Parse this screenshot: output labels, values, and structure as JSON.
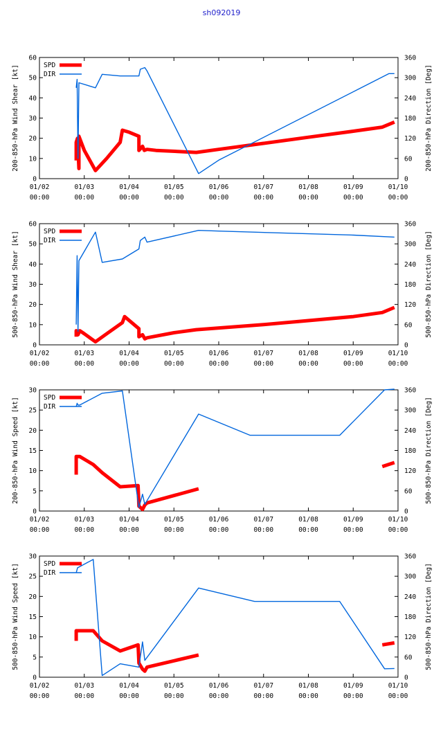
{
  "figure_title": "sh092019",
  "chart_data": [
    {
      "type": "line",
      "ylabel_left": "200-850-hPa Wind Shear [kt]",
      "ylabel_right": "200-850-hPa Direction [Deg]",
      "ylim_left": [
        0,
        60
      ],
      "yticks_left": [
        "0",
        "10",
        "20",
        "30",
        "40",
        "50",
        "60"
      ],
      "ylim_right": [
        0,
        360
      ],
      "yticks_right": [
        "0",
        "60",
        "120",
        "180",
        "240",
        "300",
        "360"
      ],
      "xlim": [
        0,
        8
      ],
      "xticks": [
        {
          "date": "01/02",
          "time": "00:00"
        },
        {
          "date": "01/03",
          "time": "00:00"
        },
        {
          "date": "01/04",
          "time": "00:00"
        },
        {
          "date": "01/05",
          "time": "00:00"
        },
        {
          "date": "01/06",
          "time": "00:00"
        },
        {
          "date": "01/07",
          "time": "00:00"
        },
        {
          "date": "01/08",
          "time": "00:00"
        },
        {
          "date": "01/09",
          "time": "00:00"
        },
        {
          "date": "01/10",
          "time": "00:00"
        }
      ],
      "legend": [
        "SPD",
        "DIR"
      ],
      "series": [
        {
          "name": "SPD",
          "axis": "left",
          "color": "#ff0000",
          "points": [
            [
              0.82,
              9
            ],
            [
              0.82,
              18
            ],
            [
              0.85,
              20
            ],
            [
              0.88,
              5
            ],
            [
              0.88,
              21
            ],
            [
              1.0,
              14
            ],
            [
              1.25,
              4
            ],
            [
              1.5,
              10
            ],
            [
              1.8,
              18
            ],
            [
              1.85,
              24
            ],
            [
              2.0,
              23
            ],
            [
              2.22,
              21
            ],
            [
              2.22,
              14
            ],
            [
              2.3,
              16
            ],
            [
              2.34,
              14
            ],
            [
              2.4,
              14.5
            ],
            [
              2.6,
              14
            ],
            [
              3.5,
              13
            ],
            [
              4.0,
              14.5
            ],
            [
              5.0,
              17.5
            ],
            [
              6.0,
              20.5
            ],
            [
              7.0,
              23.5
            ],
            [
              7.65,
              25.5
            ],
            [
              7.92,
              28
            ]
          ]
        },
        {
          "name": "DIR",
          "axis": "right",
          "color": "#0066dd",
          "points": [
            [
              0.82,
              270
            ],
            [
              0.84,
              295
            ],
            [
              0.86,
              60
            ],
            [
              0.88,
              285
            ],
            [
              1.25,
              270
            ],
            [
              1.4,
              310
            ],
            [
              1.8,
              305
            ],
            [
              2.22,
              305
            ],
            [
              2.25,
              325
            ],
            [
              2.35,
              330
            ],
            [
              2.4,
              320
            ],
            [
              3.55,
              15
            ],
            [
              4.0,
              55
            ],
            [
              7.8,
              312
            ],
            [
              7.92,
              312
            ]
          ]
        }
      ]
    },
    {
      "type": "line",
      "ylabel_left": "500-850-hPa Wind Shear [kt]",
      "ylabel_right": "500-850-hPa Direction [Deg]",
      "ylim_left": [
        0,
        60
      ],
      "yticks_left": [
        "0",
        "10",
        "20",
        "30",
        "40",
        "50",
        "60"
      ],
      "ylim_right": [
        0,
        360
      ],
      "yticks_right": [
        "0",
        "60",
        "120",
        "180",
        "240",
        "300",
        "360"
      ],
      "xlim": [
        0,
        8
      ],
      "xticks": [
        {
          "date": "01/02",
          "time": "00:00"
        },
        {
          "date": "01/03",
          "time": "00:00"
        },
        {
          "date": "01/04",
          "time": "00:00"
        },
        {
          "date": "01/05",
          "time": "00:00"
        },
        {
          "date": "01/06",
          "time": "00:00"
        },
        {
          "date": "01/07",
          "time": "00:00"
        },
        {
          "date": "01/08",
          "time": "00:00"
        },
        {
          "date": "01/09",
          "time": "00:00"
        },
        {
          "date": "01/10",
          "time": "00:00"
        }
      ],
      "legend": [
        "SPD",
        "DIR"
      ],
      "series": [
        {
          "name": "SPD",
          "axis": "left",
          "color": "#ff0000",
          "points": [
            [
              0.82,
              4
            ],
            [
              0.82,
              7
            ],
            [
              0.86,
              5
            ],
            [
              0.9,
              7
            ],
            [
              1.0,
              5.5
            ],
            [
              1.25,
              1.5
            ],
            [
              1.5,
              5.5
            ],
            [
              1.85,
              11
            ],
            [
              1.9,
              14
            ],
            [
              2.22,
              8
            ],
            [
              2.22,
              4
            ],
            [
              2.3,
              5
            ],
            [
              2.35,
              3
            ],
            [
              2.4,
              3.5
            ],
            [
              3.0,
              6
            ],
            [
              3.5,
              7.5
            ],
            [
              5.0,
              10
            ],
            [
              6.0,
              12
            ],
            [
              7.0,
              14
            ],
            [
              7.65,
              16
            ],
            [
              7.92,
              18.5
            ]
          ]
        },
        {
          "name": "DIR",
          "axis": "right",
          "color": "#0066dd",
          "points": [
            [
              0.82,
              60
            ],
            [
              0.84,
              265
            ],
            [
              0.86,
              40
            ],
            [
              0.88,
              250
            ],
            [
              1.25,
              335
            ],
            [
              1.4,
              245
            ],
            [
              1.85,
              255
            ],
            [
              2.22,
              285
            ],
            [
              2.25,
              310
            ],
            [
              2.35,
              320
            ],
            [
              2.4,
              305
            ],
            [
              3.55,
              340
            ],
            [
              4.0,
              338
            ],
            [
              6.0,
              330
            ],
            [
              7.0,
              326
            ],
            [
              7.92,
              320
            ]
          ]
        }
      ]
    },
    {
      "type": "line",
      "ylabel_left": "200-850-hPa Wind Speed [kt]",
      "ylabel_right": "500-850-hPa Direction [Deg]",
      "ylim_left": [
        0,
        30
      ],
      "yticks_left": [
        "0",
        "5",
        "10",
        "15",
        "20",
        "25",
        "30"
      ],
      "ylim_right": [
        0,
        360
      ],
      "yticks_right": [
        "0",
        "60",
        "120",
        "180",
        "240",
        "300",
        "360"
      ],
      "xlim": [
        0,
        8
      ],
      "xticks": [
        {
          "date": "01/02",
          "time": "00:00"
        },
        {
          "date": "01/03",
          "time": "00:00"
        },
        {
          "date": "01/04",
          "time": "00:00"
        },
        {
          "date": "01/05",
          "time": "00:00"
        },
        {
          "date": "01/06",
          "time": "00:00"
        },
        {
          "date": "01/07",
          "time": "00:00"
        },
        {
          "date": "01/08",
          "time": "00:00"
        },
        {
          "date": "01/09",
          "time": "00:00"
        },
        {
          "date": "01/10",
          "time": "00:00"
        }
      ],
      "legend": [
        "SPD",
        "DIR"
      ],
      "series": [
        {
          "name": "SPD",
          "axis": "left",
          "color": "#ff0000",
          "points": [
            [
              0.82,
              9
            ],
            [
              0.82,
              13.5
            ],
            [
              0.9,
              13.5
            ],
            [
              1.2,
              11.5
            ],
            [
              1.4,
              9.5
            ],
            [
              1.8,
              6
            ],
            [
              2.2,
              6.3
            ],
            [
              2.22,
              1.2
            ],
            [
              2.3,
              0.4
            ],
            [
              2.35,
              1.5
            ],
            [
              2.4,
              2
            ],
            [
              3.55,
              5.5
            ]
          ]
        },
        {
          "name": "SPD",
          "axis": "left",
          "color": "#ff0000",
          "points": [
            [
              7.65,
              11
            ],
            [
              7.92,
              12
            ]
          ]
        },
        {
          "name": "DIR",
          "axis": "right",
          "color": "#0066dd",
          "points": [
            [
              0.82,
              310
            ],
            [
              0.84,
              320
            ],
            [
              0.86,
              315
            ],
            [
              0.9,
              315
            ],
            [
              1.4,
              350
            ],
            [
              1.85,
              357
            ],
            [
              2.22,
              10
            ],
            [
              2.3,
              50
            ],
            [
              2.35,
              20
            ],
            [
              3.55,
              288
            ],
            [
              4.7,
              225
            ],
            [
              6.7,
              225
            ],
            [
              7.7,
              360
            ],
            [
              7.92,
              362
            ]
          ]
        }
      ]
    },
    {
      "type": "line",
      "ylabel_left": "500-850-hPa Wind Speed [kt]",
      "ylabel_right": "500-850-hPa Direction [Deg]",
      "ylim_left": [
        0,
        30
      ],
      "yticks_left": [
        "0",
        "5",
        "10",
        "15",
        "20",
        "25",
        "30"
      ],
      "ylim_right": [
        0,
        360
      ],
      "yticks_right": [
        "0",
        "60",
        "120",
        "180",
        "240",
        "300",
        "360"
      ],
      "xlim": [
        0,
        8
      ],
      "xticks": [
        {
          "date": "01/02",
          "time": "00:00"
        },
        {
          "date": "01/03",
          "time": "00:00"
        },
        {
          "date": "01/04",
          "time": "00:00"
        },
        {
          "date": "01/05",
          "time": "00:00"
        },
        {
          "date": "01/06",
          "time": "00:00"
        },
        {
          "date": "01/07",
          "time": "00:00"
        },
        {
          "date": "01/08",
          "time": "00:00"
        },
        {
          "date": "01/09",
          "time": "00:00"
        },
        {
          "date": "01/10",
          "time": "00:00"
        }
      ],
      "legend": [
        "SPD",
        "DIR"
      ],
      "series": [
        {
          "name": "SPD",
          "axis": "left",
          "color": "#ff0000",
          "points": [
            [
              0.82,
              9
            ],
            [
              0.82,
              11.5
            ],
            [
              0.9,
              11.5
            ],
            [
              1.2,
              11.5
            ],
            [
              1.4,
              9
            ],
            [
              1.8,
              6.5
            ],
            [
              2.2,
              8
            ],
            [
              2.22,
              3.5
            ],
            [
              2.3,
              2
            ],
            [
              2.35,
              1.5
            ],
            [
              2.4,
              2.5
            ],
            [
              3.55,
              5.5
            ]
          ]
        },
        {
          "name": "SPD",
          "axis": "left",
          "color": "#ff0000",
          "points": [
            [
              7.65,
              8
            ],
            [
              7.92,
              8.5
            ]
          ]
        },
        {
          "name": "DIR",
          "axis": "right",
          "color": "#0066dd",
          "points": [
            [
              0.82,
              310
            ],
            [
              0.85,
              325
            ],
            [
              1.2,
              350
            ],
            [
              1.4,
              5
            ],
            [
              1.8,
              40
            ],
            [
              2.22,
              30
            ],
            [
              2.25,
              60
            ],
            [
              2.3,
              105
            ],
            [
              2.35,
              50
            ],
            [
              3.55,
              265
            ],
            [
              4.8,
              225
            ],
            [
              6.7,
              225
            ],
            [
              7.7,
              25
            ],
            [
              7.92,
              26
            ]
          ]
        }
      ]
    }
  ]
}
